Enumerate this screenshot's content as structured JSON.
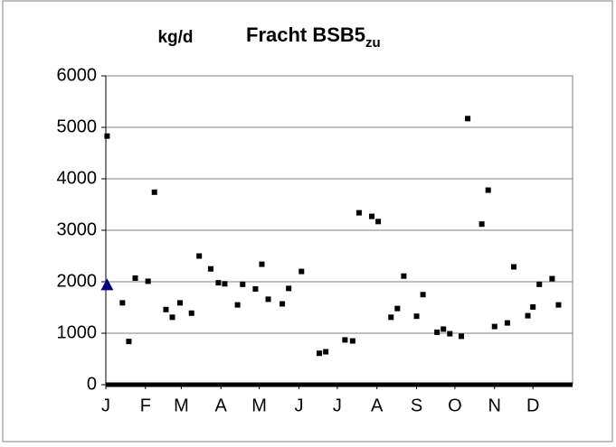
{
  "chart_data": {
    "type": "scatter",
    "title": "Fracht BSB5",
    "title_subscript": "zu",
    "y_label": "kg/d",
    "xlim": [
      0,
      365
    ],
    "xticks": [
      {
        "value": 0,
        "label": "J"
      },
      {
        "value": 31,
        "label": "F"
      },
      {
        "value": 59,
        "label": "M"
      },
      {
        "value": 90,
        "label": "A"
      },
      {
        "value": 120,
        "label": "M"
      },
      {
        "value": 151,
        "label": "J"
      },
      {
        "value": 181,
        "label": "J"
      },
      {
        "value": 212,
        "label": "A"
      },
      {
        "value": 243,
        "label": "S"
      },
      {
        "value": 273,
        "label": "O"
      },
      {
        "value": 304,
        "label": "N"
      },
      {
        "value": 334,
        "label": "D"
      }
    ],
    "ylim": [
      0,
      6000
    ],
    "yticks": [
      0,
      1000,
      2000,
      3000,
      4000,
      5000,
      6000
    ],
    "grid": true,
    "series": [
      {
        "marker": "square",
        "color": "#000000",
        "x": [
          1,
          13,
          18,
          23,
          33,
          38,
          47,
          52,
          58,
          67,
          73,
          82,
          88,
          93,
          103,
          107,
          117,
          122,
          127,
          138,
          143,
          153,
          167,
          172,
          187,
          193,
          198,
          208,
          213,
          223,
          228,
          233,
          243,
          248,
          259,
          264,
          269,
          278,
          283,
          294,
          299,
          304,
          314,
          319,
          330,
          334,
          339,
          349,
          354
        ],
        "values": [
          4830,
          1590,
          840,
          2070,
          2010,
          3740,
          1460,
          1310,
          1590,
          1390,
          2500,
          2250,
          1980,
          1960,
          1550,
          1950,
          1860,
          2340,
          1660,
          1570,
          1870,
          2200,
          610,
          640,
          870,
          850,
          3340,
          3270,
          3170,
          1310,
          1480,
          2110,
          1330,
          1750,
          1020,
          1080,
          990,
          940,
          5170,
          3120,
          3780,
          1130,
          1200,
          2290,
          1340,
          1510,
          1950,
          2060,
          1550
        ]
      },
      {
        "marker": "triangle",
        "color": "#000080",
        "x": [
          1
        ],
        "values": [
          1940
        ]
      }
    ]
  }
}
